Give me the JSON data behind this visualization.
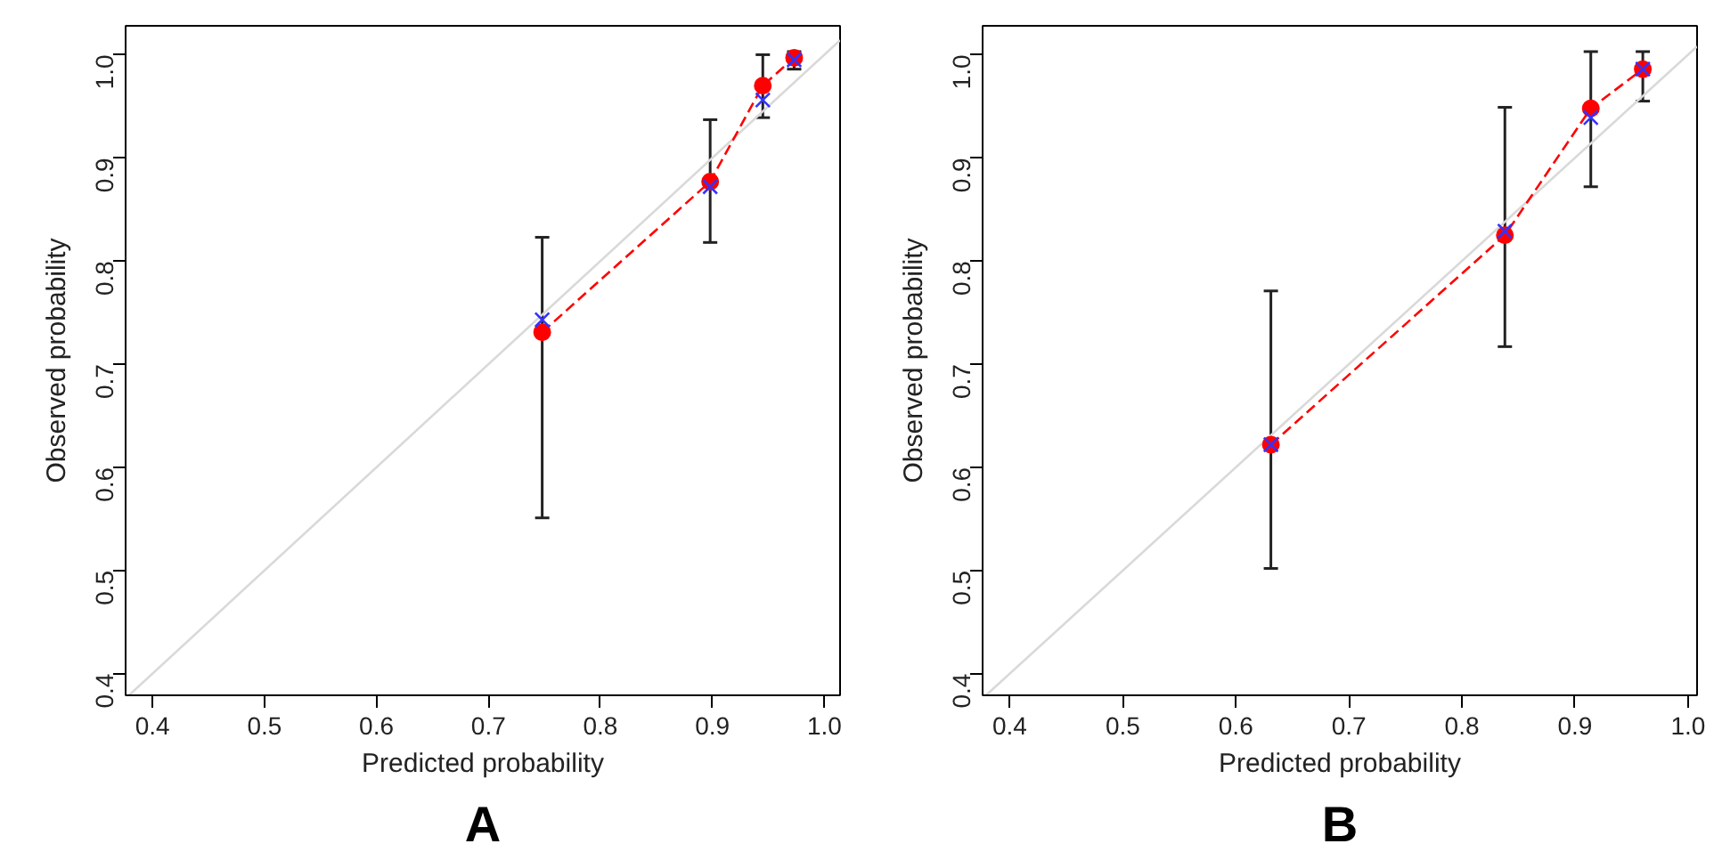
{
  "chart_data": [
    {
      "type": "line",
      "title": "A",
      "xlabel": "Predicted probability",
      "ylabel": "Observed probability",
      "xlim": [
        0.376,
        1.014
      ],
      "ylim": [
        0.379,
        1.028
      ],
      "xticks": [
        0.4,
        0.5,
        0.6,
        0.7,
        0.8,
        0.9,
        {
          "value": 1.0,
          "label": "1.0"
        }
      ],
      "yticks": [
        0.4,
        0.5,
        0.6,
        0.7,
        0.8,
        0.9,
        {
          "value": 1.0,
          "label": "1.0"
        }
      ],
      "grid": false,
      "series": [
        {
          "color": "#d9d9d9",
          "x": [
            0.379,
            1.014
          ],
          "values": [
            0.379,
            1.014
          ],
          "marker": "none",
          "line_style": "solid"
        },
        {
          "color": "#ff0000",
          "x": [
            0.748,
            0.898,
            0.945,
            0.973
          ],
          "values": [
            0.731,
            0.877,
            0.97,
            0.997
          ],
          "marker": "circle",
          "line_style": "dashed",
          "errors": [
            [
              0.551,
              0.823
            ],
            [
              0.818,
              0.937
            ],
            [
              0.939,
              1.0
            ],
            [
              0.986,
              1.003
            ]
          ]
        },
        {
          "type": "scatter",
          "color": "#3333ff",
          "x": [
            0.748,
            0.898,
            0.945,
            0.973
          ],
          "values": [
            0.743,
            0.872,
            0.956,
            0.995
          ],
          "marker": "cross"
        }
      ]
    },
    {
      "type": "line",
      "title": "B",
      "xlabel": "Predicted probability",
      "ylabel": "Observed probability",
      "xlim": [
        0.376,
        1.008
      ],
      "ylim": [
        0.379,
        1.028
      ],
      "xticks": [
        0.4,
        0.5,
        0.6,
        0.7,
        0.8,
        0.9,
        {
          "value": 1.0,
          "label": "1.0"
        }
      ],
      "yticks": [
        0.4,
        0.5,
        0.6,
        0.7,
        0.8,
        0.9,
        {
          "value": 1.0,
          "label": "1.0"
        }
      ],
      "grid": false,
      "series": [
        {
          "color": "#d9d9d9",
          "x": [
            0.379,
            1.008
          ],
          "values": [
            0.379,
            1.008
          ],
          "marker": "none",
          "line_style": "solid"
        },
        {
          "color": "#ff0000",
          "x": [
            0.631,
            0.838,
            0.914,
            0.96
          ],
          "values": [
            0.622,
            0.825,
            0.948,
            0.986
          ],
          "marker": "circle",
          "line_style": "dashed",
          "errors": [
            [
              0.502,
              0.771
            ],
            [
              0.717,
              0.949
            ],
            [
              0.872,
              1.003
            ],
            [
              0.955,
              1.003
            ]
          ]
        },
        {
          "type": "scatter",
          "color": "#3333ff",
          "x": [
            0.631,
            0.838,
            0.914,
            0.96
          ],
          "values": [
            0.622,
            0.829,
            0.939,
            0.986
          ],
          "marker": "cross"
        }
      ]
    }
  ]
}
